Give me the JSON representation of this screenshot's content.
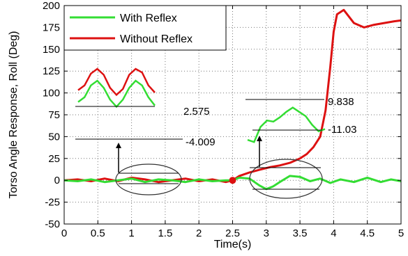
{
  "chart_data": {
    "type": "line",
    "xlabel": "Time(s)",
    "ylabel": "Torso Angle Response, Roll (Deg)",
    "xlim": [
      0,
      5
    ],
    "ylim": [
      -50,
      200
    ],
    "xticks": [
      "0",
      "0.5",
      "1",
      "1.5",
      "2",
      "2.5",
      "3",
      "3.5",
      "4",
      "4.5",
      "5"
    ],
    "yticks": [
      "-50",
      "-25",
      "0",
      "25",
      "50",
      "75",
      "100",
      "125",
      "150",
      "175",
      "200"
    ],
    "grid": true,
    "legend_position": "top-left",
    "colors": {
      "with_reflex": "#33dd33",
      "without_reflex": "#dd1111"
    },
    "series": [
      {
        "name": "With Reflex",
        "x": [
          0,
          0.2,
          0.4,
          0.6,
          0.8,
          1.0,
          1.2,
          1.4,
          1.6,
          1.8,
          2.0,
          2.2,
          2.4,
          2.5,
          2.6,
          2.75,
          2.9,
          3.0,
          3.1,
          3.2,
          3.35,
          3.5,
          3.65,
          3.8,
          3.95,
          4.1,
          4.3,
          4.5,
          4.7,
          4.85,
          5.0
        ],
        "y": [
          0,
          -1,
          1,
          -2,
          0,
          2,
          -2,
          1,
          0,
          -2,
          1,
          -1,
          0,
          0,
          3,
          2,
          -6,
          -10,
          -7,
          -2,
          5,
          4,
          -1,
          2,
          -3,
          1,
          -2,
          3,
          -2,
          1,
          -1
        ]
      },
      {
        "name": "Without Reflex",
        "x": [
          0,
          0.2,
          0.4,
          0.6,
          0.8,
          1.0,
          1.2,
          1.4,
          1.6,
          1.8,
          2.0,
          2.2,
          2.4,
          2.5,
          2.6,
          2.75,
          2.9,
          3.05,
          3.2,
          3.35,
          3.5,
          3.6,
          3.7,
          3.8,
          3.88,
          3.95,
          4.0,
          4.05,
          4.15,
          4.3,
          4.45,
          4.6,
          4.75,
          4.9,
          5.0
        ],
        "y": [
          0,
          1,
          -1,
          2,
          -1,
          3,
          1,
          -2,
          0,
          2,
          -1,
          1,
          -2,
          0,
          5,
          9,
          12,
          15,
          17,
          20,
          25,
          30,
          38,
          50,
          80,
          130,
          170,
          190,
          195,
          180,
          175,
          178,
          180,
          182,
          183
        ]
      }
    ],
    "annotations": [
      {
        "text": "2.575"
      },
      {
        "text": "-4.009"
      },
      {
        "text": "9.838"
      },
      {
        "text": "-11.03"
      }
    ],
    "insets": [
      {
        "with_reflex": [
          52,
          56,
          66,
          70,
          64,
          54,
          48,
          54,
          64,
          70,
          66,
          56,
          49
        ],
        "without_reflex": [
          62,
          66,
          76,
          80,
          75,
          64,
          58,
          63,
          75,
          80,
          77,
          66,
          60
        ]
      },
      {
        "with_reflex": [
          58,
          56,
          70,
          76,
          75,
          79,
          84,
          88,
          84,
          80,
          72,
          66,
          68
        ]
      }
    ]
  }
}
